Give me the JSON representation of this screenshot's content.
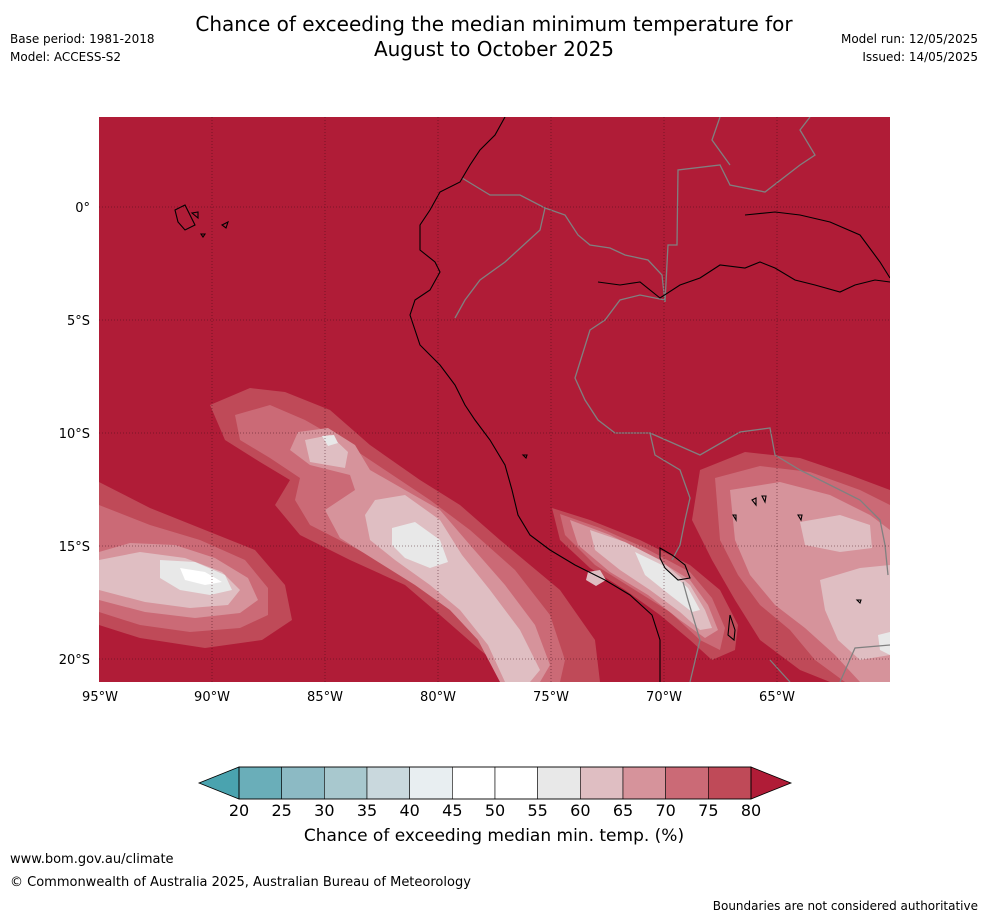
{
  "header": {
    "title_line1": "Chance of exceeding the median minimum temperature for",
    "title_line2": "August to October 2025",
    "base_period": "Base period: 1981-2018",
    "model": "Model: ACCESS-S2",
    "model_run": "Model run: 12/05/2025",
    "issued": "Issued: 14/05/2025"
  },
  "map": {
    "lat_labels": [
      "0°",
      "5°S",
      "10°S",
      "15°S",
      "20°S"
    ],
    "lon_labels": [
      "95°W",
      "90°W",
      "85°W",
      "80°W",
      "75°W",
      "70°W",
      "65°W"
    ],
    "colors": {
      "c80plus": "#b01c37",
      "c75": "#bf4a58",
      "c70": "#cb6a76",
      "c65": "#d6939b",
      "c60": "#dfbec2",
      "c55": "#e8e8e8",
      "land_border": "#808080",
      "coast": "#000000"
    }
  },
  "colorbar": {
    "ticks": [
      "20",
      "25",
      "30",
      "35",
      "40",
      "45",
      "50",
      "55",
      "60",
      "65",
      "70",
      "75",
      "80"
    ],
    "colors": [
      "#6aaeb9",
      "#8cbac4",
      "#a8c8ce",
      "#c9d8dd",
      "#e8eef1",
      "#ffffff",
      "#ffffff",
      "#e8e8e8",
      "#dfbec2",
      "#d6939b",
      "#cb6a76",
      "#bf4a58"
    ],
    "under_color": "#4aa3af",
    "over_color": "#b01c37",
    "label": "Chance of exceeding median min. temp. (%)"
  },
  "footer": {
    "website": "www.bom.gov.au/climate",
    "copyright": "© Commonwealth of Australia 2025, Australian Bureau of Meteorology",
    "disclaimer": "Boundaries are not considered authoritative"
  }
}
